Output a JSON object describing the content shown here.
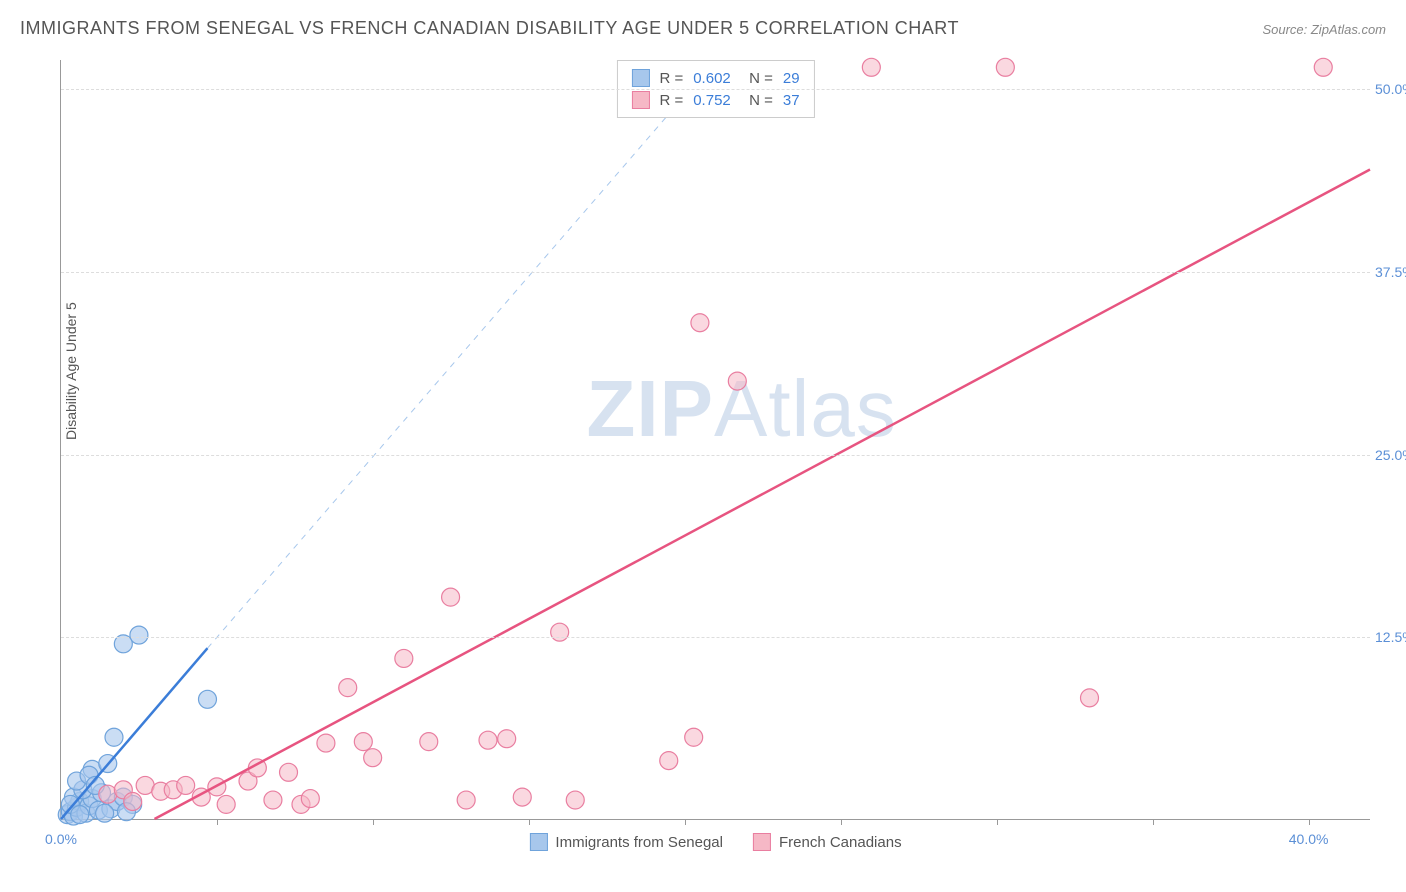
{
  "title": "IMMIGRANTS FROM SENEGAL VS FRENCH CANADIAN DISABILITY AGE UNDER 5 CORRELATION CHART",
  "source": "Source: ZipAtlas.com",
  "ylabel": "Disability Age Under 5",
  "watermark_a": "ZIP",
  "watermark_b": "Atlas",
  "chart": {
    "type": "scatter",
    "xlim": [
      0,
      42
    ],
    "ylim": [
      0,
      52
    ],
    "x_tick_step": 5,
    "x_origin_label": "0.0%",
    "x_end_label": "40.0%",
    "y_ticks": [
      12.5,
      25.0,
      37.5,
      50.0
    ],
    "y_tick_labels": [
      "12.5%",
      "25.0%",
      "37.5%",
      "50.0%"
    ],
    "background_color": "#ffffff",
    "grid_color": "#dddddd",
    "axis_color": "#999999",
    "tick_label_color": "#5b8fd6",
    "series": [
      {
        "name": "Immigrants from Senegal",
        "color_fill": "#a7c7ec",
        "color_stroke": "#6fa3db",
        "r_value": "0.602",
        "n_value": "29",
        "marker_radius": 9,
        "marker_opacity": 0.6,
        "trend_solid": {
          "x1": 0,
          "y1": 0,
          "x2": 4.7,
          "y2": 11.7,
          "width": 2.5,
          "color": "#3b7dd8"
        },
        "trend_dash": {
          "x1": 4.7,
          "y1": 11.7,
          "x2": 21,
          "y2": 52,
          "width": 1,
          "color": "#a7c7ec"
        },
        "points": [
          [
            0.2,
            0.3
          ],
          [
            0.3,
            0.5
          ],
          [
            0.4,
            0.2
          ],
          [
            0.5,
            0.8
          ],
          [
            0.6,
            1.2
          ],
          [
            0.4,
            1.5
          ],
          [
            0.8,
            0.4
          ],
          [
            0.9,
            0.9
          ],
          [
            1.0,
            1.4
          ],
          [
            0.7,
            2.0
          ],
          [
            1.2,
            0.6
          ],
          [
            1.3,
            1.8
          ],
          [
            0.5,
            2.6
          ],
          [
            1.0,
            3.4
          ],
          [
            0.9,
            3.0
          ],
          [
            1.6,
            0.7
          ],
          [
            1.8,
            1.2
          ],
          [
            2.0,
            1.5
          ],
          [
            2.3,
            1.0
          ],
          [
            1.5,
            3.8
          ],
          [
            0.3,
            1.0
          ],
          [
            0.6,
            0.3
          ],
          [
            1.1,
            2.3
          ],
          [
            2.1,
            0.5
          ],
          [
            1.4,
            0.4
          ],
          [
            1.7,
            5.6
          ],
          [
            2.5,
            12.6
          ],
          [
            2.0,
            12.0
          ],
          [
            4.7,
            8.2
          ]
        ]
      },
      {
        "name": "French Canadians",
        "color_fill": "#f6b8c6",
        "color_stroke": "#e97ea0",
        "r_value": "0.752",
        "n_value": "37",
        "marker_radius": 9,
        "marker_opacity": 0.55,
        "trend_solid": {
          "x1": 3.0,
          "y1": 0,
          "x2": 42,
          "y2": 44.5,
          "width": 2.5,
          "color": "#e75480"
        },
        "points": [
          [
            1.5,
            1.7
          ],
          [
            2.0,
            2.0
          ],
          [
            2.3,
            1.2
          ],
          [
            2.7,
            2.3
          ],
          [
            3.2,
            1.9
          ],
          [
            3.6,
            2.0
          ],
          [
            4.0,
            2.3
          ],
          [
            4.5,
            1.5
          ],
          [
            5.0,
            2.2
          ],
          [
            5.3,
            1.0
          ],
          [
            6.0,
            2.6
          ],
          [
            6.3,
            3.5
          ],
          [
            6.8,
            1.3
          ],
          [
            7.3,
            3.2
          ],
          [
            7.7,
            1.0
          ],
          [
            8.0,
            1.4
          ],
          [
            8.5,
            5.2
          ],
          [
            9.2,
            9.0
          ],
          [
            9.7,
            5.3
          ],
          [
            10.0,
            4.2
          ],
          [
            11.0,
            11.0
          ],
          [
            11.8,
            5.3
          ],
          [
            12.5,
            15.2
          ],
          [
            13.0,
            1.3
          ],
          [
            13.7,
            5.4
          ],
          [
            14.3,
            5.5
          ],
          [
            14.8,
            1.5
          ],
          [
            16.0,
            12.8
          ],
          [
            16.5,
            1.3
          ],
          [
            19.5,
            4.0
          ],
          [
            20.3,
            5.6
          ],
          [
            20.5,
            34.0
          ],
          [
            21.7,
            30.0
          ],
          [
            26.0,
            51.5
          ],
          [
            30.3,
            51.5
          ],
          [
            33.0,
            8.3
          ],
          [
            40.5,
            51.5
          ]
        ]
      }
    ],
    "bottom_legend": [
      {
        "label": "Immigrants from Senegal",
        "fill": "#a7c7ec",
        "stroke": "#6fa3db"
      },
      {
        "label": "French Canadians",
        "fill": "#f6b8c6",
        "stroke": "#e97ea0"
      }
    ]
  }
}
